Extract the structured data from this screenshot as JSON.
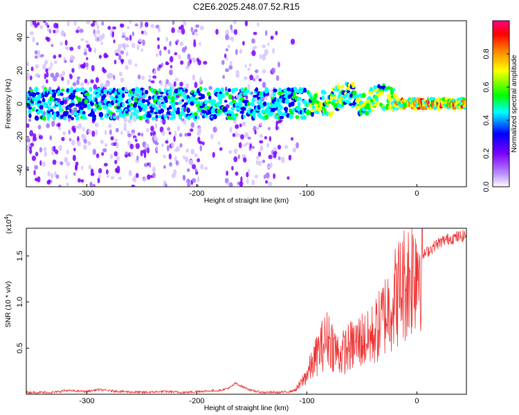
{
  "chart_data": [
    {
      "type": "heatmap",
      "title": "C2E6.2025.248.07.52.R15",
      "xlabel": "Height of straight line (km)",
      "ylabel": "Frequency (Hz)",
      "xlim": [
        -355,
        45
      ],
      "ylim": [
        -50,
        50
      ],
      "x_ticks": [
        -300,
        -200,
        -100,
        0
      ],
      "y_ticks": [
        -40,
        -20,
        0,
        20,
        40
      ],
      "colorbar": {
        "label": "Normalized spectral amplitude",
        "range": [
          0.0,
          1.0
        ],
        "ticks": [
          "0.0",
          "0.2",
          "0.4",
          "0.6",
          "0.8"
        ],
        "colors": [
          "#ffffff",
          "#7a00ff",
          "#0000ff",
          "#00ffff",
          "#00ff00",
          "#ffff00",
          "#ff8000",
          "#ff0000",
          "#ff0080"
        ]
      },
      "grid": false
    },
    {
      "type": "line",
      "xlabel": "Height of straight line (km)",
      "ylabel": "SNR (10 * v/v)",
      "y_scale_label": "(x10",
      "y_scale_exp": "4",
      "xlim": [
        -355,
        45
      ],
      "ylim": [
        0,
        1.8
      ],
      "x_ticks": [
        -300,
        -200,
        -100,
        0
      ],
      "y_ticks": [
        0.5,
        1.0,
        1.5
      ],
      "y_tick_labels": [
        "0.5",
        "1.0",
        "1.5"
      ],
      "line_color": "#ee3333",
      "grid": false,
      "series": [
        {
          "x": [
            -355,
            -330,
            -320,
            -300,
            -290,
            -270,
            -250,
            -230,
            -210,
            -200,
            -180,
            -170,
            -165,
            -160,
            -150,
            -140,
            -125,
            -115,
            -110,
            -105,
            -100,
            -95,
            -90,
            -85,
            -80,
            -75,
            -70,
            -65,
            -60,
            -55,
            -50,
            -45,
            -40,
            -35,
            -30,
            -25,
            -20,
            -15,
            -12,
            -8,
            -5,
            -2,
            0,
            5,
            10,
            15,
            20,
            25,
            30,
            35,
            40,
            45
          ],
          "y": [
            0.02,
            0.02,
            0.04,
            0.03,
            0.05,
            0.03,
            0.02,
            0.03,
            0.02,
            0.03,
            0.04,
            0.07,
            0.12,
            0.09,
            0.04,
            0.02,
            0.02,
            0.03,
            0.05,
            0.12,
            0.22,
            0.32,
            0.45,
            0.55,
            0.62,
            0.5,
            0.42,
            0.48,
            0.52,
            0.55,
            0.6,
            0.58,
            0.65,
            0.72,
            0.85,
            0.95,
            1.05,
            1.15,
            1.2,
            1.25,
            1.3,
            1.4,
            1.45,
            1.5,
            1.55,
            1.6,
            1.64,
            1.67,
            1.69,
            1.7,
            1.71,
            1.72
          ]
        }
      ]
    }
  ]
}
